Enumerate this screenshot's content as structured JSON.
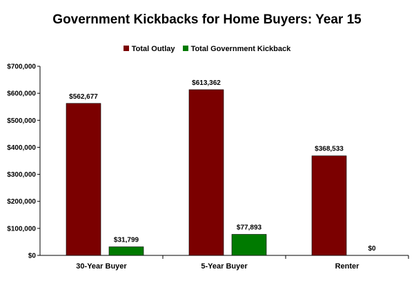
{
  "chart_data": {
    "type": "bar",
    "title": "Government Kickbacks for Home Buyers: Year 15",
    "categories": [
      "30-Year Buyer",
      "5-Year Buyer",
      "Renter"
    ],
    "series": [
      {
        "name": "Total Outlay",
        "color": "#7b0000",
        "values": [
          562677,
          613362,
          368533
        ],
        "labels": [
          "$562,677",
          "$613,362",
          "$368,533"
        ]
      },
      {
        "name": "Total Government Kickback",
        "color": "#007a00",
        "values": [
          31799,
          77893,
          0
        ],
        "labels": [
          "$31,799",
          "$77,893",
          "$0"
        ]
      }
    ],
    "ylim": [
      0,
      700000
    ],
    "yticks": [
      0,
      100000,
      200000,
      300000,
      400000,
      500000,
      600000,
      700000
    ],
    "ytick_labels": [
      "$0",
      "$100,000",
      "$200,000",
      "$300,000",
      "$400,000",
      "$500,000",
      "$600,000",
      "$700,000"
    ],
    "legend_position": "top",
    "grid": false
  }
}
